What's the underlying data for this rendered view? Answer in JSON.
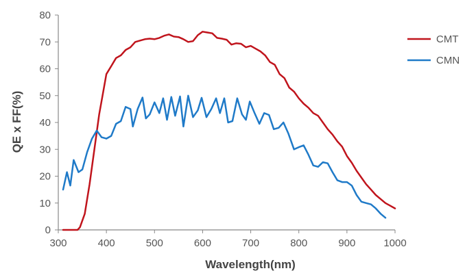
{
  "chart_data": {
    "type": "line",
    "title": "",
    "xlabel": "Wavelength(nm)",
    "ylabel": "QE x FF(%)",
    "xlim": [
      300,
      1000
    ],
    "ylim": [
      0,
      80
    ],
    "x_ticks": [
      300,
      400,
      500,
      600,
      700,
      800,
      900,
      1000
    ],
    "y_ticks": [
      0,
      10,
      20,
      30,
      40,
      50,
      60,
      70,
      80
    ],
    "grid": false,
    "legend_position": "top-right",
    "series": [
      {
        "name": "CMT",
        "color": "#c0141c",
        "points": [
          [
            310,
            0
          ],
          [
            320,
            0
          ],
          [
            330,
            0
          ],
          [
            340,
            0
          ],
          [
            345,
            1
          ],
          [
            355,
            6
          ],
          [
            365,
            17
          ],
          [
            375,
            30
          ],
          [
            385,
            43
          ],
          [
            392,
            50
          ],
          [
            400,
            58
          ],
          [
            410,
            61
          ],
          [
            420,
            64
          ],
          [
            430,
            65
          ],
          [
            440,
            67
          ],
          [
            450,
            68
          ],
          [
            460,
            70
          ],
          [
            470,
            70.5
          ],
          [
            480,
            71
          ],
          [
            490,
            71.2
          ],
          [
            500,
            71
          ],
          [
            510,
            71.5
          ],
          [
            520,
            72.3
          ],
          [
            530,
            72.8
          ],
          [
            540,
            72
          ],
          [
            550,
            71.8
          ],
          [
            560,
            71
          ],
          [
            570,
            70
          ],
          [
            580,
            70.3
          ],
          [
            590,
            72.5
          ],
          [
            600,
            73.8
          ],
          [
            610,
            73.5
          ],
          [
            620,
            73.2
          ],
          [
            630,
            71.5
          ],
          [
            640,
            71.2
          ],
          [
            650,
            70.8
          ],
          [
            660,
            69
          ],
          [
            670,
            69.5
          ],
          [
            680,
            69.3
          ],
          [
            690,
            68
          ],
          [
            700,
            68.5
          ],
          [
            710,
            67.5
          ],
          [
            720,
            66.5
          ],
          [
            730,
            65
          ],
          [
            740,
            62.5
          ],
          [
            750,
            61.5
          ],
          [
            760,
            58
          ],
          [
            770,
            56.5
          ],
          [
            780,
            53
          ],
          [
            790,
            51.5
          ],
          [
            800,
            49
          ],
          [
            810,
            47
          ],
          [
            820,
            45.5
          ],
          [
            830,
            43.5
          ],
          [
            840,
            42.5
          ],
          [
            850,
            40
          ],
          [
            860,
            37.5
          ],
          [
            870,
            35.5
          ],
          [
            880,
            33
          ],
          [
            890,
            31
          ],
          [
            900,
            27.5
          ],
          [
            910,
            25
          ],
          [
            920,
            22
          ],
          [
            930,
            19.5
          ],
          [
            940,
            17
          ],
          [
            950,
            15
          ],
          [
            960,
            13
          ],
          [
            970,
            11.5
          ],
          [
            980,
            10
          ],
          [
            990,
            9
          ],
          [
            1000,
            8
          ]
        ]
      },
      {
        "name": "CMN",
        "color": "#1f7ac8",
        "points": [
          [
            310,
            15
          ],
          [
            318,
            21.5
          ],
          [
            325,
            16.5
          ],
          [
            332,
            26
          ],
          [
            342,
            21.5
          ],
          [
            350,
            22.5
          ],
          [
            360,
            29
          ],
          [
            370,
            34
          ],
          [
            380,
            37
          ],
          [
            390,
            34.5
          ],
          [
            400,
            34
          ],
          [
            410,
            35
          ],
          [
            420,
            39.5
          ],
          [
            430,
            40.5
          ],
          [
            440,
            45.8
          ],
          [
            450,
            45
          ],
          [
            455,
            38.5
          ],
          [
            465,
            45
          ],
          [
            475,
            49.3
          ],
          [
            482,
            41.5
          ],
          [
            490,
            43
          ],
          [
            500,
            47.5
          ],
          [
            510,
            43.5
          ],
          [
            518,
            49
          ],
          [
            526,
            41
          ],
          [
            535,
            49.5
          ],
          [
            543,
            42.5
          ],
          [
            553,
            49.7
          ],
          [
            560,
            38.5
          ],
          [
            570,
            50
          ],
          [
            580,
            42
          ],
          [
            590,
            44.5
          ],
          [
            598,
            49.2
          ],
          [
            608,
            42
          ],
          [
            618,
            45
          ],
          [
            628,
            49
          ],
          [
            636,
            43.5
          ],
          [
            645,
            49
          ],
          [
            653,
            40
          ],
          [
            662,
            40.5
          ],
          [
            672,
            49
          ],
          [
            682,
            43
          ],
          [
            690,
            41
          ],
          [
            698,
            47.8
          ],
          [
            708,
            43.5
          ],
          [
            718,
            39.5
          ],
          [
            728,
            43.5
          ],
          [
            738,
            42.8
          ],
          [
            748,
            37.5
          ],
          [
            758,
            38
          ],
          [
            768,
            40
          ],
          [
            778,
            36
          ],
          [
            790,
            30
          ],
          [
            800,
            30.8
          ],
          [
            810,
            31.5
          ],
          [
            820,
            28
          ],
          [
            830,
            24
          ],
          [
            840,
            23.5
          ],
          [
            850,
            25.2
          ],
          [
            860,
            24.8
          ],
          [
            870,
            21.5
          ],
          [
            880,
            18.5
          ],
          [
            890,
            17.8
          ],
          [
            900,
            17.8
          ],
          [
            910,
            16.5
          ],
          [
            920,
            13
          ],
          [
            930,
            10.5
          ],
          [
            940,
            10
          ],
          [
            950,
            9.5
          ],
          [
            960,
            8
          ],
          [
            970,
            6
          ],
          [
            980,
            4.5
          ]
        ]
      }
    ]
  }
}
